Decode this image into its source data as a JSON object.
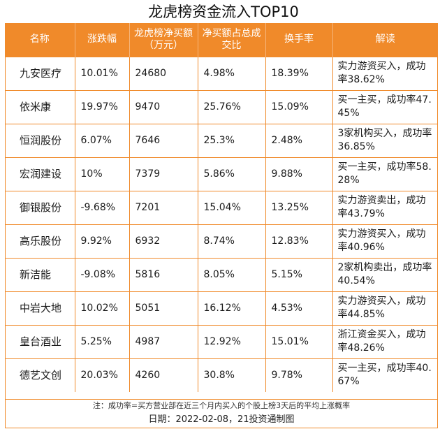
{
  "title": "龙虎榜资金流入TOP10",
  "headers": [
    "名称",
    "涨跌幅",
    "龙虎榜净买额（万元）",
    "净买额占总成交比",
    "换手率",
    "解读"
  ],
  "rows": [
    {
      "name": "九安医疗",
      "change": "10.01%",
      "net_buy": "24680",
      "ratio": "4.98%",
      "turnover": "18.39%",
      "note": "实力游资买入，成功率38.62%"
    },
    {
      "name": "依米康",
      "change": "19.97%",
      "net_buy": "9470",
      "ratio": "25.76%",
      "turnover": "15.09%",
      "note": "买一主买，成功率47.45%"
    },
    {
      "name": "恒润股份",
      "change": "6.07%",
      "net_buy": "7646",
      "ratio": "25.3%",
      "turnover": "2.48%",
      "note": "3家机构买入，成功率36.85%"
    },
    {
      "name": "宏润建设",
      "change": "10%",
      "net_buy": "7379",
      "ratio": "5.86%",
      "turnover": "9.88%",
      "note": "买一主买，成功率58.28%"
    },
    {
      "name": "御银股份",
      "change": "-9.68%",
      "net_buy": "7201",
      "ratio": "15.04%",
      "turnover": "13.25%",
      "note": "实力游资卖出，成功率43.79%"
    },
    {
      "name": "高乐股份",
      "change": "9.92%",
      "net_buy": "6932",
      "ratio": "8.74%",
      "turnover": "12.83%",
      "note": "实力游资买入，成功率40.96%"
    },
    {
      "name": "新洁能",
      "change": "-9.08%",
      "net_buy": "5816",
      "ratio": "8.05%",
      "turnover": "5.15%",
      "note": "2家机构卖出，成功率40.54%"
    },
    {
      "name": "中岩大地",
      "change": "10.02%",
      "net_buy": "5051",
      "ratio": "16.12%",
      "turnover": "4.53%",
      "note": "实力游资买入，成功率44.85%"
    },
    {
      "name": "皇台酒业",
      "change": "5.25%",
      "net_buy": "4987",
      "ratio": "12.92%",
      "turnover": "15.01%",
      "note": "浙江资金买入，成功率48.26%"
    },
    {
      "name": "德艺文创",
      "change": "20.03%",
      "net_buy": "4260",
      "ratio": "30.8%",
      "turnover": "9.78%",
      "note": "买一主买，成功率40.67%"
    }
  ],
  "footnote": "注：成功率=买方营业部在近三个月内买入的个股上榜3天后的平均上涨概率",
  "date_line": "日期：2022-02-08，21投资通制图",
  "colors": {
    "accent": "#f08a2a",
    "header_text": "#ffffff"
  }
}
